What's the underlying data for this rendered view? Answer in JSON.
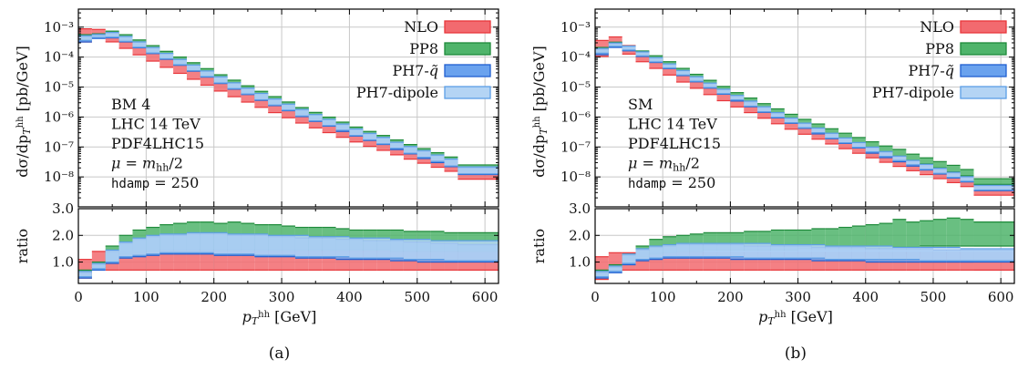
{
  "legend_entries": [
    {
      "name": "NLO",
      "color": "#e8373b",
      "fill": "#f26a6f"
    },
    {
      "name": "PP8",
      "color": "#1e8a3a",
      "fill": "#4fb46b"
    },
    {
      "name": "PH7-q̃",
      "color": "#1f5fd1",
      "fill": "#6aa2ee"
    },
    {
      "name": "PH7-dipole",
      "color": "#5b9ee6",
      "fill": "#b4d4f4"
    }
  ],
  "axes": {
    "xlabel": "p_T^hh [GeV]",
    "ylabel_top": "dσ/dp_T^hh [pb/GeV]",
    "ylabel_bottom": "ratio",
    "x_ticks": [
      "0",
      "100",
      "200",
      "300",
      "400",
      "500",
      "600"
    ],
    "y_ticks_top": [
      "10⁻³",
      "10⁻⁴",
      "10⁻⁵",
      "10⁻⁶",
      "10⁻⁷",
      "10⁻⁸"
    ],
    "y_ticks_bottom": [
      "3.0",
      "2.0",
      "1.0"
    ]
  },
  "chart_data": [
    {
      "type": "bar",
      "panel": "a",
      "caption": "(a)",
      "info": [
        "BM 4",
        "LHC 14 TeV",
        "PDF4LHC15",
        "μ = m_hh/2",
        "hdamp = 250"
      ],
      "xlim": [
        0,
        620
      ],
      "ylim_top": [
        1e-09,
        0.004
      ],
      "ylim_ratio": [
        0.2,
        3.0
      ],
      "y_scale_top": "log",
      "bins": [
        0,
        20,
        40,
        60,
        80,
        100,
        120,
        140,
        160,
        180,
        200,
        220,
        240,
        260,
        280,
        300,
        320,
        340,
        360,
        380,
        400,
        420,
        440,
        460,
        480,
        500,
        520,
        540,
        560,
        620
      ],
      "main": [
        0.0008,
        0.0006,
        0.00046,
        0.00028,
        0.00017,
        0.000105,
        6.5e-05,
        4.1e-05,
        2.6e-05,
        1.65e-05,
        1.05e-05,
        6.8e-06,
        4.5e-06,
        3e-06,
        2e-06,
        1.35e-06,
        9e-07,
        6.2e-07,
        4.3e-07,
        3e-07,
        2.1e-07,
        1.5e-07,
        1.1e-07,
        7.8e-08,
        5.6e-08,
        4.1e-08,
        3e-08,
        2.2e-08,
        1.2e-08
      ],
      "series": [
        {
          "name": "NLO",
          "ratio_lo": [
            0.4,
            0.8,
            0.7,
            0.7,
            0.7,
            0.7,
            0.7,
            0.7,
            0.7,
            0.7,
            0.7,
            0.7,
            0.7,
            0.7,
            0.7,
            0.7,
            0.7,
            0.7,
            0.7,
            0.7,
            0.7,
            0.7,
            0.7,
            0.7,
            0.7,
            0.7,
            0.7,
            0.7,
            0.7
          ],
          "ratio_hi": [
            1.1,
            1.4,
            1.35,
            1.4,
            1.4,
            1.45,
            1.45,
            1.45,
            1.45,
            1.45,
            1.45,
            1.45,
            1.4,
            1.4,
            1.4,
            1.4,
            1.4,
            1.4,
            1.4,
            1.4,
            1.4,
            1.4,
            1.4,
            1.4,
            1.4,
            1.4,
            1.4,
            1.4,
            1.4
          ]
        },
        {
          "name": "PP8",
          "ratio_lo": [
            0.5,
            0.8,
            1.05,
            1.3,
            1.35,
            1.4,
            1.45,
            1.45,
            1.45,
            1.45,
            1.45,
            1.45,
            1.45,
            1.45,
            1.45,
            1.45,
            1.45,
            1.45,
            1.45,
            1.45,
            1.45,
            1.45,
            1.45,
            1.4,
            1.4,
            1.4,
            1.4,
            1.4,
            1.4
          ],
          "ratio_hi": [
            0.7,
            1.0,
            1.6,
            2.0,
            2.2,
            2.3,
            2.4,
            2.45,
            2.5,
            2.5,
            2.45,
            2.5,
            2.45,
            2.4,
            2.4,
            2.35,
            2.3,
            2.3,
            2.3,
            2.25,
            2.2,
            2.2,
            2.2,
            2.2,
            2.15,
            2.15,
            2.15,
            2.1,
            2.1
          ]
        },
        {
          "name": "PH7-q̃",
          "ratio_lo": [
            0.4,
            0.7,
            0.95,
            1.15,
            1.2,
            1.25,
            1.3,
            1.3,
            1.3,
            1.3,
            1.25,
            1.25,
            1.25,
            1.2,
            1.2,
            1.2,
            1.15,
            1.15,
            1.15,
            1.1,
            1.1,
            1.1,
            1.1,
            1.05,
            1.05,
            1.0,
            1.0,
            1.0,
            1.0
          ],
          "ratio_hi": [
            0.6,
            0.9,
            1.4,
            1.7,
            1.85,
            1.95,
            2.0,
            2.0,
            2.05,
            2.05,
            2.05,
            2.0,
            2.0,
            2.0,
            1.95,
            1.95,
            1.9,
            1.9,
            1.9,
            1.85,
            1.85,
            1.8,
            1.8,
            1.8,
            1.75,
            1.75,
            1.7,
            1.7,
            1.65
          ]
        },
        {
          "name": "PH7-dipole",
          "ratio_lo": [
            0.45,
            0.75,
            1.0,
            1.2,
            1.25,
            1.3,
            1.35,
            1.35,
            1.35,
            1.35,
            1.3,
            1.3,
            1.3,
            1.25,
            1.25,
            1.25,
            1.2,
            1.2,
            1.2,
            1.2,
            1.15,
            1.15,
            1.15,
            1.15,
            1.1,
            1.1,
            1.1,
            1.05,
            1.05
          ],
          "ratio_hi": [
            0.65,
            0.95,
            1.45,
            1.75,
            1.9,
            2.0,
            2.05,
            2.05,
            2.1,
            2.1,
            2.1,
            2.05,
            2.05,
            2.05,
            2.0,
            2.0,
            2.0,
            1.95,
            1.95,
            1.95,
            1.9,
            1.9,
            1.9,
            1.85,
            1.85,
            1.85,
            1.8,
            1.8,
            1.8
          ]
        }
      ]
    },
    {
      "type": "bar",
      "panel": "b",
      "caption": "(b)",
      "info": [
        "SM",
        "LHC 14 TeV",
        "PDF4LHC15",
        "μ = m_hh/2",
        "hdamp = 250"
      ],
      "xlim": [
        0,
        620
      ],
      "ylim_top": [
        1e-09,
        0.004
      ],
      "ylim_ratio": [
        0.2,
        3.0
      ],
      "y_scale_top": "log",
      "bins": [
        0,
        20,
        40,
        60,
        80,
        100,
        120,
        140,
        160,
        180,
        200,
        220,
        240,
        260,
        280,
        300,
        320,
        340,
        360,
        380,
        400,
        420,
        440,
        460,
        480,
        500,
        520,
        540,
        560,
        620
      ],
      "main": [
        0.0003,
        0.00035,
        0.00018,
        0.0001,
        6e-05,
        3.6e-05,
        2.1e-05,
        1.3e-05,
        8e-06,
        5e-06,
        3.1e-06,
        2e-06,
        1.3e-06,
        8.5e-07,
        5.6e-07,
        3.8e-07,
        2.6e-07,
        1.8e-07,
        1.25e-07,
        8.8e-08,
        6.2e-08,
        4.4e-08,
        3.2e-08,
        2.3e-08,
        1.7e-08,
        1.25e-08,
        9.2e-09,
        6.8e-09,
        3.5e-09
      ],
      "series": [
        {
          "name": "NLO",
          "ratio_lo": [
            0.35,
            0.7,
            0.7,
            0.7,
            0.7,
            0.7,
            0.7,
            0.7,
            0.7,
            0.7,
            0.7,
            0.7,
            0.7,
            0.7,
            0.7,
            0.7,
            0.7,
            0.7,
            0.7,
            0.7,
            0.7,
            0.7,
            0.7,
            0.7,
            0.7,
            0.7,
            0.7,
            0.7,
            0.7
          ],
          "ratio_hi": [
            1.2,
            1.35,
            1.35,
            1.35,
            1.35,
            1.35,
            1.35,
            1.35,
            1.35,
            1.35,
            1.35,
            1.35,
            1.35,
            1.35,
            1.35,
            1.35,
            1.35,
            1.35,
            1.35,
            1.35,
            1.35,
            1.35,
            1.35,
            1.35,
            1.35,
            1.35,
            1.35,
            1.35,
            1.35
          ]
        },
        {
          "name": "PP8",
          "ratio_lo": [
            0.5,
            0.7,
            0.95,
            1.2,
            1.3,
            1.35,
            1.4,
            1.4,
            1.45,
            1.45,
            1.45,
            1.45,
            1.45,
            1.45,
            1.45,
            1.5,
            1.5,
            1.5,
            1.5,
            1.5,
            1.5,
            1.5,
            1.55,
            1.55,
            1.6,
            1.6,
            1.6,
            1.6,
            1.6
          ],
          "ratio_hi": [
            0.7,
            0.9,
            1.3,
            1.6,
            1.85,
            1.95,
            2.0,
            2.05,
            2.1,
            2.1,
            2.1,
            2.15,
            2.15,
            2.2,
            2.2,
            2.2,
            2.25,
            2.25,
            2.3,
            2.35,
            2.4,
            2.45,
            2.6,
            2.5,
            2.55,
            2.6,
            2.65,
            2.6,
            2.5
          ]
        },
        {
          "name": "PH7-q̃",
          "ratio_lo": [
            0.4,
            0.6,
            0.9,
            1.05,
            1.1,
            1.15,
            1.15,
            1.15,
            1.15,
            1.15,
            1.1,
            1.1,
            1.1,
            1.1,
            1.1,
            1.1,
            1.05,
            1.05,
            1.05,
            1.05,
            1.0,
            1.0,
            1.0,
            1.0,
            1.0,
            1.0,
            1.0,
            1.0,
            1.0
          ],
          "ratio_hi": [
            0.6,
            0.8,
            1.25,
            1.45,
            1.55,
            1.6,
            1.65,
            1.65,
            1.65,
            1.65,
            1.65,
            1.6,
            1.6,
            1.6,
            1.6,
            1.6,
            1.55,
            1.55,
            1.55,
            1.55,
            1.5,
            1.5,
            1.5,
            1.5,
            1.5,
            1.45,
            1.45,
            1.45,
            1.45
          ]
        },
        {
          "name": "PH7-dipole",
          "ratio_lo": [
            0.45,
            0.65,
            0.95,
            1.1,
            1.15,
            1.2,
            1.2,
            1.2,
            1.2,
            1.2,
            1.2,
            1.15,
            1.15,
            1.15,
            1.15,
            1.15,
            1.15,
            1.1,
            1.1,
            1.1,
            1.1,
            1.1,
            1.1,
            1.1,
            1.05,
            1.05,
            1.05,
            1.05,
            1.05
          ],
          "ratio_hi": [
            0.65,
            0.85,
            1.3,
            1.5,
            1.6,
            1.65,
            1.7,
            1.7,
            1.7,
            1.7,
            1.7,
            1.7,
            1.7,
            1.65,
            1.65,
            1.65,
            1.65,
            1.6,
            1.6,
            1.6,
            1.6,
            1.6,
            1.55,
            1.55,
            1.55,
            1.55,
            1.55,
            1.5,
            1.5
          ]
        }
      ]
    }
  ]
}
